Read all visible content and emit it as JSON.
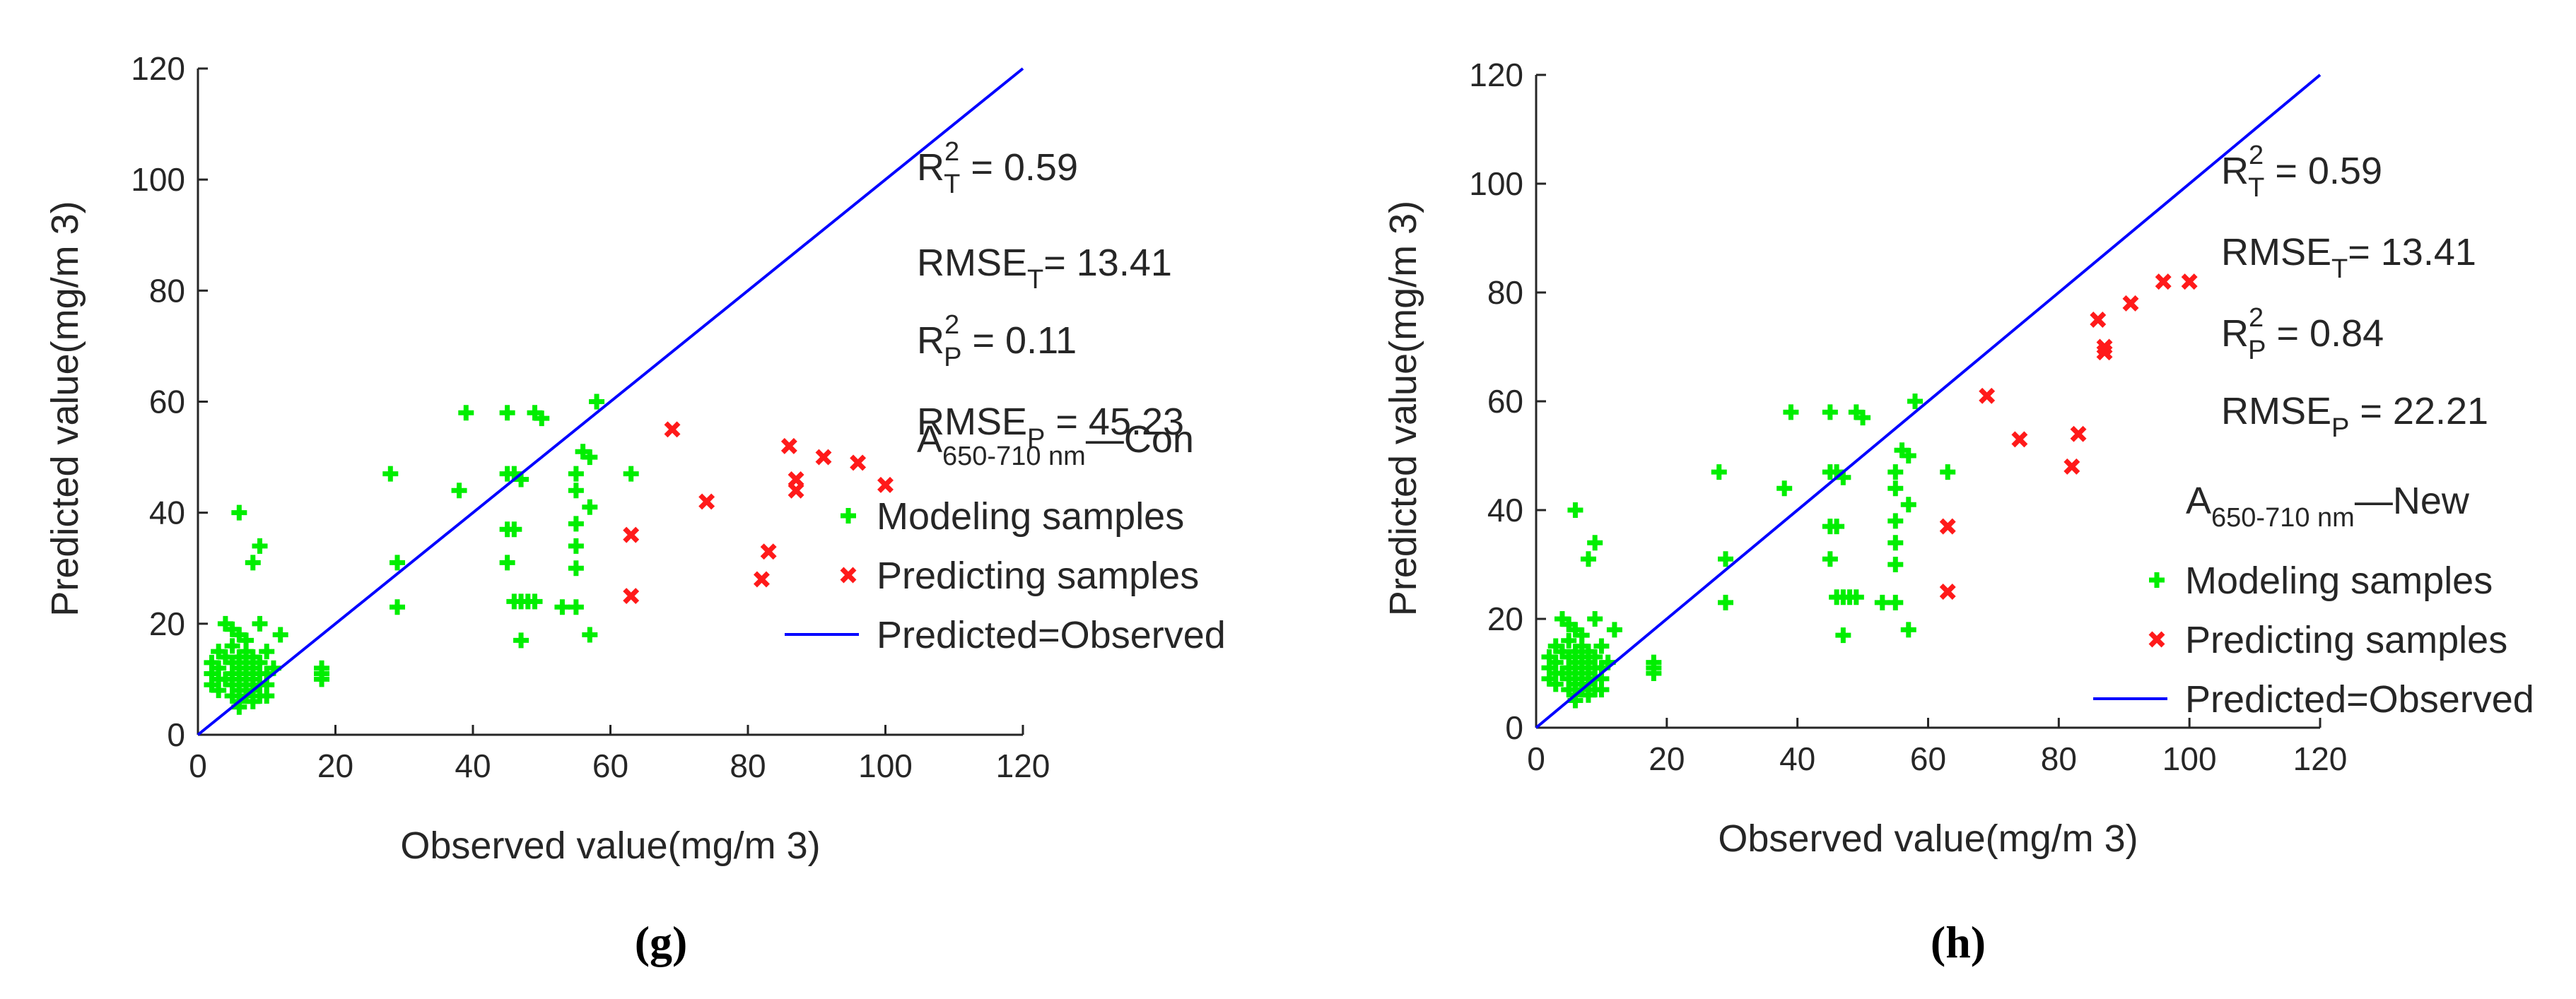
{
  "chart_data": [
    {
      "type": "scatter",
      "panel_label": "(g)",
      "xlabel": "Observed value(mg/m 3)",
      "ylabel": "Predicted value(mg/m 3)",
      "xlim": [
        0,
        120
      ],
      "ylim": [
        0,
        120
      ],
      "xticks": [
        "0",
        "20",
        "40",
        "60",
        "80",
        "100",
        "120"
      ],
      "yticks": [
        "0",
        "20",
        "40",
        "60",
        "80",
        "100",
        "120"
      ],
      "annotations": [
        {
          "base": "R",
          "sup": "2",
          "sub": "T",
          "rest": " = 0.59"
        },
        {
          "base": "RMSE",
          "sup": "",
          "sub": "T",
          "rest": "= 13.41"
        },
        {
          "base": "R",
          "sup": "2",
          "sub": "P",
          "rest": " = 0.11"
        },
        {
          "base": "RMSE",
          "sup": "",
          "sub": "P",
          "rest": " = 45.23"
        }
      ],
      "legend_title": {
        "base": "A",
        "sub": "650-710 nm",
        "rest": "—Con"
      },
      "legend": [
        "Modeling samples",
        "Predicting samples",
        "Predicted=Observed"
      ],
      "series": [
        {
          "name": "Modeling samples",
          "marker": "plus",
          "color": "#00ee00",
          "points": [
            [
              2,
              9
            ],
            [
              2,
              11
            ],
            [
              2,
              13
            ],
            [
              3,
              8
            ],
            [
              3,
              10
            ],
            [
              3,
              12
            ],
            [
              3,
              15
            ],
            [
              4,
              10
            ],
            [
              4,
              14
            ],
            [
              4,
              20
            ],
            [
              5,
              7
            ],
            [
              5,
              9
            ],
            [
              5,
              11
            ],
            [
              5,
              13
            ],
            [
              5,
              16
            ],
            [
              5,
              19
            ],
            [
              6,
              5
            ],
            [
              6,
              6
            ],
            [
              6,
              8
            ],
            [
              6,
              10
            ],
            [
              6,
              12
            ],
            [
              6,
              14
            ],
            [
              6,
              18
            ],
            [
              6,
              40
            ],
            [
              7,
              7
            ],
            [
              7,
              9
            ],
            [
              7,
              11
            ],
            [
              7,
              13
            ],
            [
              7,
              15
            ],
            [
              7,
              17
            ],
            [
              8,
              6
            ],
            [
              8,
              8
            ],
            [
              8,
              10
            ],
            [
              8,
              12
            ],
            [
              8,
              14
            ],
            [
              8,
              31
            ],
            [
              9,
              7
            ],
            [
              9,
              9
            ],
            [
              9,
              11
            ],
            [
              9,
              13
            ],
            [
              9,
              20
            ],
            [
              9,
              34
            ],
            [
              10,
              7
            ],
            [
              10,
              9
            ],
            [
              10,
              11
            ],
            [
              10,
              15
            ],
            [
              11,
              12
            ],
            [
              12,
              18
            ],
            [
              18,
              10
            ],
            [
              18,
              11
            ],
            [
              18,
              12
            ],
            [
              28,
              47
            ],
            [
              29,
              23
            ],
            [
              29,
              31
            ],
            [
              38,
              44
            ],
            [
              39,
              58
            ],
            [
              45,
              31
            ],
            [
              45,
              37
            ],
            [
              45,
              47
            ],
            [
              45,
              58
            ],
            [
              46,
              24
            ],
            [
              46,
              37
            ],
            [
              46,
              47
            ],
            [
              47,
              17
            ],
            [
              47,
              24
            ],
            [
              47,
              46
            ],
            [
              48,
              24
            ],
            [
              49,
              24
            ],
            [
              49,
              58
            ],
            [
              50,
              57
            ],
            [
              53,
              23
            ],
            [
              55,
              23
            ],
            [
              55,
              30
            ],
            [
              55,
              34
            ],
            [
              55,
              38
            ],
            [
              55,
              44
            ],
            [
              55,
              47
            ],
            [
              56,
              51
            ],
            [
              57,
              18
            ],
            [
              57,
              41
            ],
            [
              57,
              50
            ],
            [
              58,
              60
            ],
            [
              63,
              47
            ]
          ]
        },
        {
          "name": "Predicting samples",
          "marker": "x",
          "color": "#ff1a1a",
          "points": [
            [
              63,
              25
            ],
            [
              63,
              36
            ],
            [
              69,
              55
            ],
            [
              74,
              42
            ],
            [
              82,
              28
            ],
            [
              83,
              33
            ],
            [
              86,
              52
            ],
            [
              87,
              46
            ],
            [
              87,
              44
            ],
            [
              91,
              50
            ],
            [
              96,
              49
            ],
            [
              100,
              45
            ]
          ]
        },
        {
          "name": "Predicted=Observed",
          "type": "line",
          "color": "#0000ff",
          "x": [
            0,
            120
          ],
          "y": [
            0,
            120
          ]
        }
      ]
    },
    {
      "type": "scatter",
      "panel_label": "(h)",
      "xlabel": "Observed value(mg/m 3)",
      "ylabel": "Predicted value(mg/m 3)",
      "xlim": [
        0,
        120
      ],
      "ylim": [
        0,
        120
      ],
      "xticks": [
        "0",
        "20",
        "40",
        "60",
        "80",
        "100",
        "120"
      ],
      "yticks": [
        "0",
        "20",
        "40",
        "60",
        "80",
        "100",
        "120"
      ],
      "annotations": [
        {
          "base": "R",
          "sup": "2",
          "sub": "T",
          "rest": " = 0.59"
        },
        {
          "base": "RMSE",
          "sup": "",
          "sub": "T",
          "rest": "= 13.41"
        },
        {
          "base": "R",
          "sup": "2",
          "sub": "P",
          "rest": " = 0.84"
        },
        {
          "base": "RMSE",
          "sup": "",
          "sub": "P",
          "rest": " = 22.21"
        }
      ],
      "legend_title": {
        "base": "A",
        "sub": "650-710 nm",
        "rest": "—New"
      },
      "legend": [
        "Modeling samples",
        "Predicting samples",
        "Predicted=Observed"
      ],
      "series": [
        {
          "name": "Modeling samples",
          "marker": "plus",
          "color": "#00ee00",
          "points": [
            [
              2,
              9
            ],
            [
              2,
              11
            ],
            [
              2,
              13
            ],
            [
              3,
              8
            ],
            [
              3,
              10
            ],
            [
              3,
              12
            ],
            [
              3,
              15
            ],
            [
              4,
              10
            ],
            [
              4,
              14
            ],
            [
              4,
              20
            ],
            [
              5,
              7
            ],
            [
              5,
              9
            ],
            [
              5,
              11
            ],
            [
              5,
              13
            ],
            [
              5,
              16
            ],
            [
              5,
              19
            ],
            [
              6,
              5
            ],
            [
              6,
              6
            ],
            [
              6,
              8
            ],
            [
              6,
              10
            ],
            [
              6,
              12
            ],
            [
              6,
              14
            ],
            [
              6,
              18
            ],
            [
              6,
              40
            ],
            [
              7,
              7
            ],
            [
              7,
              9
            ],
            [
              7,
              11
            ],
            [
              7,
              13
            ],
            [
              7,
              15
            ],
            [
              7,
              17
            ],
            [
              8,
              6
            ],
            [
              8,
              8
            ],
            [
              8,
              10
            ],
            [
              8,
              12
            ],
            [
              8,
              14
            ],
            [
              8,
              31
            ],
            [
              9,
              7
            ],
            [
              9,
              9
            ],
            [
              9,
              11
            ],
            [
              9,
              13
            ],
            [
              9,
              20
            ],
            [
              9,
              34
            ],
            [
              10,
              7
            ],
            [
              10,
              9
            ],
            [
              10,
              11
            ],
            [
              10,
              15
            ],
            [
              11,
              12
            ],
            [
              12,
              18
            ],
            [
              18,
              10
            ],
            [
              18,
              11
            ],
            [
              18,
              12
            ],
            [
              28,
              47
            ],
            [
              29,
              23
            ],
            [
              29,
              31
            ],
            [
              38,
              44
            ],
            [
              39,
              58
            ],
            [
              45,
              31
            ],
            [
              45,
              37
            ],
            [
              45,
              47
            ],
            [
              45,
              58
            ],
            [
              46,
              24
            ],
            [
              46,
              37
            ],
            [
              46,
              47
            ],
            [
              47,
              17
            ],
            [
              47,
              24
            ],
            [
              47,
              46
            ],
            [
              48,
              24
            ],
            [
              49,
              24
            ],
            [
              49,
              58
            ],
            [
              50,
              57
            ],
            [
              53,
              23
            ],
            [
              55,
              23
            ],
            [
              55,
              30
            ],
            [
              55,
              34
            ],
            [
              55,
              38
            ],
            [
              55,
              44
            ],
            [
              55,
              47
            ],
            [
              56,
              51
            ],
            [
              57,
              18
            ],
            [
              57,
              41
            ],
            [
              57,
              50
            ],
            [
              58,
              60
            ],
            [
              63,
              47
            ]
          ]
        },
        {
          "name": "Predicting samples",
          "marker": "x",
          "color": "#ff1a1a",
          "points": [
            [
              63,
              25
            ],
            [
              63,
              37
            ],
            [
              69,
              61
            ],
            [
              74,
              53
            ],
            [
              82,
              48
            ],
            [
              83,
              54
            ],
            [
              86,
              75
            ],
            [
              87,
              70
            ],
            [
              87,
              69
            ],
            [
              91,
              78
            ],
            [
              96,
              82
            ],
            [
              100,
              82
            ]
          ]
        },
        {
          "name": "Predicted=Observed",
          "type": "line",
          "color": "#0000ff",
          "x": [
            0,
            120
          ],
          "y": [
            0,
            120
          ]
        }
      ]
    }
  ]
}
